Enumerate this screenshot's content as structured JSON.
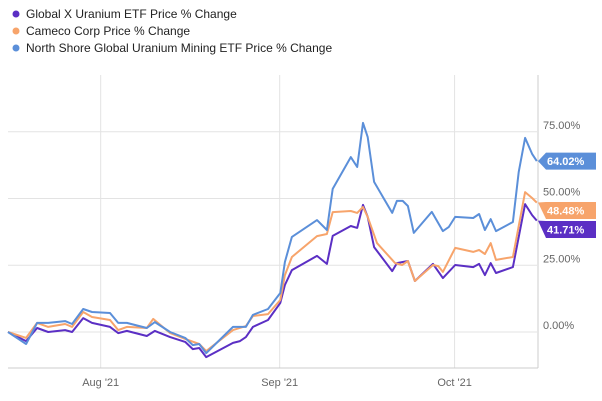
{
  "chart_data": {
    "type": "line",
    "title": "",
    "xlabel": "",
    "ylabel": "",
    "x_units": "days since start of range (mid-Jul 2021)",
    "xlim": [
      0,
      90.7
    ],
    "ylim": [
      -12,
      92
    ],
    "grid": true,
    "legend_position": "top-left",
    "x_ticks": [
      {
        "label": "Aug '21",
        "day": 15.9
      },
      {
        "label": "Sep '21",
        "day": 46.6
      },
      {
        "label": "Oct '21",
        "day": 76.6
      }
    ],
    "y_ticks": [
      {
        "label": "0.00%",
        "value": 0
      },
      {
        "label": "25.00%",
        "value": 25
      },
      {
        "label": "50.00%",
        "value": 50
      },
      {
        "label": "75.00%",
        "value": 75
      }
    ],
    "series": [
      {
        "name": "Global X Uranium ETF Price % Change",
        "color": "#5b2fc4",
        "end_label": "41.71%",
        "end_value": 41.71,
        "points": [
          [
            0,
            0
          ],
          [
            3.1,
            -3.4
          ],
          [
            5.0,
            1.5
          ],
          [
            6.9,
            0
          ],
          [
            9.8,
            0.7
          ],
          [
            11.0,
            0
          ],
          [
            12.9,
            5.2
          ],
          [
            14.4,
            3.4
          ],
          [
            17.5,
            1.9
          ],
          [
            18.9,
            -0.4
          ],
          [
            20.4,
            0.4
          ],
          [
            23.8,
            -1.5
          ],
          [
            25.2,
            0.4
          ],
          [
            27.8,
            -1.9
          ],
          [
            30.4,
            -3.7
          ],
          [
            31.7,
            -6.4
          ],
          [
            32.8,
            -6.0
          ],
          [
            34.0,
            -9.4
          ],
          [
            38.6,
            -4.1
          ],
          [
            39.8,
            -3.4
          ],
          [
            40.8,
            -1.9
          ],
          [
            42.0,
            1.9
          ],
          [
            44.6,
            4.5
          ],
          [
            46.7,
            10.9
          ],
          [
            47.5,
            17.6
          ],
          [
            48.7,
            23.2
          ],
          [
            53.0,
            28.5
          ],
          [
            54.7,
            25.5
          ],
          [
            55.7,
            36.0
          ],
          [
            58.8,
            39.7
          ],
          [
            59.9,
            39.0
          ],
          [
            60.9,
            47.6
          ],
          [
            61.7,
            43.1
          ],
          [
            62.8,
            31.8
          ],
          [
            65.9,
            22.8
          ],
          [
            66.7,
            25.8
          ],
          [
            68.6,
            26.6
          ],
          [
            69.8,
            19.1
          ],
          [
            72.9,
            25.5
          ],
          [
            74.6,
            20.2
          ],
          [
            76.7,
            25.1
          ],
          [
            79.8,
            24.3
          ],
          [
            80.8,
            25.5
          ],
          [
            81.8,
            21.3
          ],
          [
            82.8,
            25.8
          ],
          [
            83.7,
            22.1
          ],
          [
            86.6,
            24.3
          ],
          [
            88.7,
            47.9
          ],
          [
            89.9,
            43.8
          ],
          [
            90.7,
            41.71
          ]
        ]
      },
      {
        "name": "Cameco Corp Price % Change",
        "color": "#f7a46b",
        "end_label": "48.48%",
        "end_value": 48.48,
        "points": [
          [
            0,
            0
          ],
          [
            3.1,
            -2.2
          ],
          [
            5.0,
            3.4
          ],
          [
            6.9,
            1.9
          ],
          [
            9.8,
            3.0
          ],
          [
            11.0,
            1.9
          ],
          [
            12.9,
            7.5
          ],
          [
            14.4,
            5.6
          ],
          [
            17.5,
            4.5
          ],
          [
            18.9,
            0.7
          ],
          [
            20.4,
            1.9
          ],
          [
            23.8,
            1.5
          ],
          [
            24.9,
            4.9
          ],
          [
            27.8,
            -0.4
          ],
          [
            30.4,
            -2.6
          ],
          [
            32.8,
            -4.5
          ],
          [
            34.0,
            -7.1
          ],
          [
            38.6,
            0.7
          ],
          [
            40.8,
            2.2
          ],
          [
            42.0,
            6.0
          ],
          [
            44.6,
            6.7
          ],
          [
            46.7,
            12.0
          ],
          [
            47.5,
            21.3
          ],
          [
            48.7,
            28.1
          ],
          [
            53.0,
            35.9
          ],
          [
            54.7,
            36.7
          ],
          [
            55.7,
            44.9
          ],
          [
            58.8,
            45.3
          ],
          [
            59.9,
            44.6
          ],
          [
            60.9,
            46.8
          ],
          [
            61.7,
            43.1
          ],
          [
            63.3,
            33.3
          ],
          [
            66.4,
            25.8
          ],
          [
            67.6,
            25.1
          ],
          [
            68.6,
            26.6
          ],
          [
            69.8,
            19.1
          ],
          [
            72.9,
            25.1
          ],
          [
            73.8,
            24.7
          ],
          [
            74.6,
            22.5
          ],
          [
            76.7,
            31.5
          ],
          [
            79.8,
            30.0
          ],
          [
            80.8,
            30.7
          ],
          [
            81.8,
            29.2
          ],
          [
            82.8,
            33.3
          ],
          [
            83.7,
            27.0
          ],
          [
            86.6,
            28.1
          ],
          [
            88.7,
            52.4
          ],
          [
            89.9,
            50.2
          ],
          [
            90.7,
            48.48
          ]
        ]
      },
      {
        "name": "North Shore Global Uranium Mining ETF Price % Change",
        "color": "#5b8fd9",
        "end_label": "64.02%",
        "end_value": 64.02,
        "points": [
          [
            0,
            0
          ],
          [
            3.1,
            -4.5
          ],
          [
            5.0,
            3.4
          ],
          [
            6.9,
            3.4
          ],
          [
            9.8,
            4.1
          ],
          [
            11.0,
            3.0
          ],
          [
            12.9,
            8.6
          ],
          [
            14.4,
            7.5
          ],
          [
            17.5,
            7.1
          ],
          [
            18.9,
            3.4
          ],
          [
            20.4,
            3.4
          ],
          [
            23.8,
            1.5
          ],
          [
            25.2,
            3.7
          ],
          [
            27.8,
            0
          ],
          [
            30.4,
            -2.2
          ],
          [
            31.7,
            -4.9
          ],
          [
            32.8,
            -4.5
          ],
          [
            34.0,
            -7.9
          ],
          [
            38.6,
            1.9
          ],
          [
            40.8,
            1.9
          ],
          [
            42.0,
            6.4
          ],
          [
            44.6,
            8.6
          ],
          [
            46.7,
            14.6
          ],
          [
            47.5,
            26.2
          ],
          [
            48.7,
            35.6
          ],
          [
            53.0,
            41.9
          ],
          [
            54.7,
            38.2
          ],
          [
            55.7,
            53.6
          ],
          [
            58.8,
            65.5
          ],
          [
            59.9,
            61.8
          ],
          [
            60.9,
            78.3
          ],
          [
            61.7,
            73.0
          ],
          [
            62.8,
            56.2
          ],
          [
            65.9,
            44.6
          ],
          [
            66.7,
            49.1
          ],
          [
            67.7,
            49.1
          ],
          [
            68.6,
            47.2
          ],
          [
            69.6,
            37.1
          ],
          [
            72.7,
            45.0
          ],
          [
            74.6,
            37.8
          ],
          [
            75.6,
            39.3
          ],
          [
            76.7,
            43.1
          ],
          [
            79.8,
            42.7
          ],
          [
            80.8,
            44.2
          ],
          [
            81.8,
            38.2
          ],
          [
            82.8,
            42.3
          ],
          [
            83.7,
            37.8
          ],
          [
            86.6,
            41.2
          ],
          [
            87.6,
            59.9
          ],
          [
            88.7,
            72.7
          ],
          [
            89.9,
            66.7
          ],
          [
            90.7,
            64.02
          ]
        ]
      }
    ]
  }
}
